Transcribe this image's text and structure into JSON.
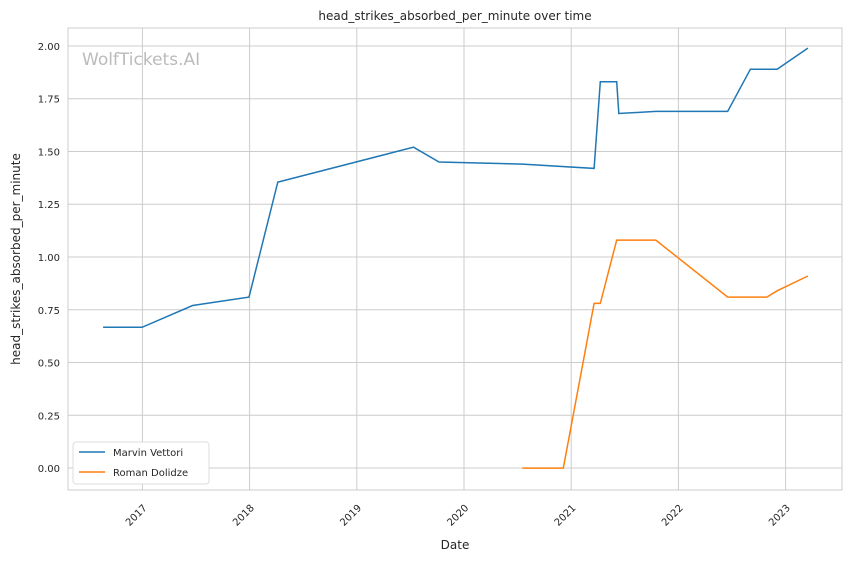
{
  "chart_data": {
    "type": "line",
    "title": "head_strikes_absorbed_per_minute over time",
    "xlabel": "Date",
    "ylabel": "head_strikes_absorbed_per_minute",
    "watermark": "WolfTickets.AI",
    "xlim": [
      "2016-04-22",
      "2023-07-12"
    ],
    "ylim": [
      -0.104,
      2.085
    ],
    "xticks": [
      "2017",
      "2018",
      "2019",
      "2020",
      "2021",
      "2022",
      "2023"
    ],
    "yticks": [
      "0.00",
      "0.25",
      "0.50",
      "0.75",
      "1.00",
      "1.25",
      "1.50",
      "1.75",
      "2.00"
    ],
    "grid": true,
    "legend_position": "lower-left",
    "series": [
      {
        "name": "Marvin Vettori",
        "color": "#1f77b4",
        "points": [
          [
            "2016-08-20",
            0.667
          ],
          [
            "2016-12-31",
            0.667
          ],
          [
            "2017-06-21",
            0.77
          ],
          [
            "2017-12-30",
            0.81
          ],
          [
            "2018-04-07",
            1.355
          ],
          [
            "2019-07-13",
            1.52
          ],
          [
            "2019-10-08",
            1.45
          ],
          [
            "2020-07-18",
            1.44
          ],
          [
            "2021-03-20",
            1.42
          ],
          [
            "2021-04-10",
            1.83
          ],
          [
            "2021-06-05",
            1.83
          ],
          [
            "2021-06-12",
            1.68
          ],
          [
            "2021-10-16",
            1.69
          ],
          [
            "2022-06-18",
            1.69
          ],
          [
            "2022-09-03",
            1.89
          ],
          [
            "2022-12-03",
            1.89
          ],
          [
            "2023-03-18",
            1.99
          ]
        ]
      },
      {
        "name": "Roman Dolidze",
        "color": "#ff7f0e",
        "points": [
          [
            "2020-07-18",
            0.0
          ],
          [
            "2020-12-05",
            0.0
          ],
          [
            "2021-03-20",
            0.78
          ],
          [
            "2021-04-10",
            0.78
          ],
          [
            "2021-06-05",
            1.08
          ],
          [
            "2021-10-16",
            1.08
          ],
          [
            "2022-06-18",
            0.81
          ],
          [
            "2022-10-29",
            0.81
          ],
          [
            "2022-12-03",
            0.84
          ],
          [
            "2023-03-18",
            0.91
          ]
        ]
      }
    ]
  }
}
